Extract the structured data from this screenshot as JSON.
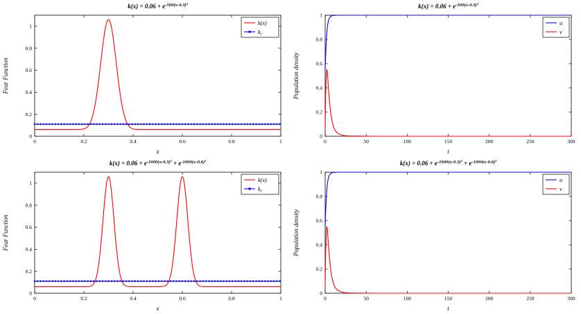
{
  "figure": {
    "background": "#ffffff"
  },
  "colors": {
    "red": "#ff0000",
    "blue": "#0000ff",
    "axis": "#000000"
  },
  "chart_data": [
    {
      "id": "fear-single",
      "type": "line",
      "title_segments": [
        {
          "t": "k(x) = 0.06 + e"
        },
        {
          "sup": "-500(x-0.3)²"
        }
      ],
      "xlabel": "x",
      "ylabel": "Fear  Function",
      "xlim": [
        0,
        1
      ],
      "ylim": [
        0,
        1.1
      ],
      "xticks": [
        0,
        0.2,
        0.4,
        0.6,
        0.8,
        1
      ],
      "xtick_labels": [
        "0",
        "0.2",
        "0.4",
        "0.6",
        "0.8",
        "1"
      ],
      "yticks": [
        0,
        0.2,
        0.4,
        0.6,
        0.8,
        1
      ],
      "ytick_labels": [
        "0",
        "0.2",
        "0.4",
        "0.6",
        "0.8",
        "1"
      ],
      "grid": false,
      "legend": {
        "position": "northeast",
        "width": 54,
        "entries": [
          {
            "label_segments": [
              {
                "t": "k(x)"
              }
            ],
            "color": "#ff0000",
            "marker": false
          },
          {
            "label_segments": [
              {
                "t": "k"
              },
              {
                "sub": "c"
              }
            ],
            "color": "#0000ff",
            "marker": true
          }
        ]
      },
      "series": [
        {
          "name": "k(x)",
          "color": "#ff0000",
          "kind": "gaussian_sum",
          "baseline": 0.06,
          "peaks": [
            {
              "center": 0.3,
              "coef": 500
            }
          ]
        },
        {
          "name": "k_c",
          "color": "#0000ff",
          "kind": "hline",
          "value": 0.11,
          "marker": true,
          "marker_step": 0.012
        }
      ]
    },
    {
      "id": "pop-single",
      "type": "line",
      "title_segments": [
        {
          "t": "k(x) = 0.06 + e"
        },
        {
          "sup": "-500(x-0.3)²"
        }
      ],
      "xlabel": "t",
      "ylabel": "Population  density",
      "xlim": [
        0,
        300
      ],
      "ylim": [
        0,
        1
      ],
      "xticks": [
        0,
        50,
        100,
        150,
        200,
        250,
        300
      ],
      "xtick_labels": [
        "0",
        "50",
        "100",
        "150",
        "200",
        "250",
        "300"
      ],
      "yticks": [
        0,
        0.2,
        0.4,
        0.6,
        0.8,
        1
      ],
      "ytick_labels": [
        "0",
        "0.2",
        "0.4",
        "0.6",
        "0.8",
        "1"
      ],
      "grid": false,
      "legend": {
        "position": "northeast",
        "width": 38,
        "entries": [
          {
            "label_segments": [
              {
                "t": "u"
              }
            ],
            "color": "#0000ff",
            "marker": false
          },
          {
            "label_segments": [
              {
                "t": "v"
              }
            ],
            "color": "#ff0000",
            "marker": false
          }
        ]
      },
      "series": [
        {
          "name": "u",
          "color": "#0000ff",
          "kind": "points",
          "t": [
            0,
            0.5,
            1,
            1.5,
            2,
            2.5,
            3,
            4,
            5,
            6,
            7,
            8,
            10,
            12,
            15,
            20,
            30,
            50,
            100,
            150,
            200,
            250,
            300
          ],
          "y": [
            0.55,
            0.65,
            0.73,
            0.8,
            0.85,
            0.89,
            0.92,
            0.955,
            0.975,
            0.985,
            0.99,
            0.995,
            0.998,
            0.999,
            1,
            1,
            1,
            1,
            1,
            1,
            1,
            1,
            1
          ]
        },
        {
          "name": "v",
          "color": "#ff0000",
          "kind": "points",
          "t": [
            0,
            0.3,
            0.6,
            1,
            1.4,
            1.8,
            2.2,
            2.6,
            3,
            3.5,
            4,
            5,
            6,
            7,
            8,
            10,
            12,
            15,
            20,
            25,
            30,
            40,
            60,
            100,
            150,
            200,
            250,
            300
          ],
          "y": [
            0.05,
            0.2,
            0.33,
            0.45,
            0.52,
            0.55,
            0.55,
            0.53,
            0.5,
            0.45,
            0.4,
            0.31,
            0.24,
            0.18,
            0.14,
            0.08,
            0.05,
            0.025,
            0.01,
            0.004,
            0.002,
            0.001,
            0,
            0,
            0,
            0,
            0,
            0
          ]
        }
      ]
    },
    {
      "id": "fear-double",
      "type": "line",
      "title_segments": [
        {
          "t": "k(x) = 0.06 + e"
        },
        {
          "sup": "-1000(x-0.3)²"
        },
        {
          "t": " + e"
        },
        {
          "sup": "-1000(x-0.6)²"
        }
      ],
      "xlabel": "x",
      "ylabel": "Fear  Function",
      "xlim": [
        0,
        1
      ],
      "ylim": [
        0,
        1.1
      ],
      "xticks": [
        0,
        0.2,
        0.4,
        0.6,
        0.8,
        1
      ],
      "xtick_labels": [
        "0",
        "0.2",
        "0.4",
        "0.6",
        "0.8",
        "1"
      ],
      "yticks": [
        0,
        0.2,
        0.4,
        0.6,
        0.8,
        1
      ],
      "ytick_labels": [
        "0",
        "0.2",
        "0.4",
        "0.6",
        "0.8",
        "1"
      ],
      "grid": false,
      "legend": {
        "position": "northeast",
        "width": 54,
        "entries": [
          {
            "label_segments": [
              {
                "t": "k(x)"
              }
            ],
            "color": "#ff0000",
            "marker": false
          },
          {
            "label_segments": [
              {
                "t": "k"
              },
              {
                "sub": "c"
              }
            ],
            "color": "#0000ff",
            "marker": true
          }
        ]
      },
      "series": [
        {
          "name": "k(x)",
          "color": "#ff0000",
          "kind": "gaussian_sum",
          "baseline": 0.06,
          "peaks": [
            {
              "center": 0.3,
              "coef": 1000
            },
            {
              "center": 0.6,
              "coef": 1000
            }
          ]
        },
        {
          "name": "k_c",
          "color": "#0000ff",
          "kind": "hline",
          "value": 0.11,
          "marker": true,
          "marker_step": 0.012
        }
      ]
    },
    {
      "id": "pop-double",
      "type": "line",
      "title_segments": [
        {
          "t": "k(x) = 0.06 + e"
        },
        {
          "sup": "-1000(x-0.3)²"
        },
        {
          "t": " + e"
        },
        {
          "sup": "-1000(x-0.6)²"
        }
      ],
      "xlabel": "t",
      "ylabel": "Population  density",
      "xlim": [
        0,
        300
      ],
      "ylim": [
        0,
        1
      ],
      "xticks": [
        0,
        50,
        100,
        150,
        200,
        250,
        300
      ],
      "xtick_labels": [
        "0",
        "50",
        "100",
        "150",
        "200",
        "250",
        "300"
      ],
      "yticks": [
        0,
        0.2,
        0.4,
        0.6,
        0.8,
        1
      ],
      "ytick_labels": [
        "0",
        "0.2",
        "0.4",
        "0.6",
        "0.8",
        "1"
      ],
      "grid": false,
      "legend": {
        "position": "northeast",
        "width": 38,
        "entries": [
          {
            "label_segments": [
              {
                "t": "u"
              }
            ],
            "color": "#0000ff",
            "marker": false
          },
          {
            "label_segments": [
              {
                "t": "v"
              }
            ],
            "color": "#ff0000",
            "marker": false
          }
        ]
      },
      "series": [
        {
          "name": "u",
          "color": "#0000ff",
          "kind": "points",
          "t": [
            0,
            0.5,
            1,
            1.5,
            2,
            2.5,
            3,
            4,
            5,
            6,
            7,
            8,
            10,
            12,
            15,
            20,
            30,
            50,
            100,
            150,
            200,
            250,
            300
          ],
          "y": [
            0.55,
            0.65,
            0.73,
            0.8,
            0.85,
            0.89,
            0.92,
            0.955,
            0.975,
            0.985,
            0.99,
            0.995,
            0.998,
            0.999,
            1,
            1,
            1,
            1,
            1,
            1,
            1,
            1,
            1
          ]
        },
        {
          "name": "v",
          "color": "#ff0000",
          "kind": "points",
          "t": [
            0,
            0.3,
            0.6,
            1,
            1.4,
            1.8,
            2.2,
            2.6,
            3,
            3.5,
            4,
            5,
            6,
            7,
            8,
            10,
            12,
            15,
            20,
            25,
            30,
            40,
            60,
            100,
            150,
            200,
            250,
            300
          ],
          "y": [
            0.05,
            0.2,
            0.33,
            0.45,
            0.52,
            0.55,
            0.55,
            0.53,
            0.5,
            0.45,
            0.4,
            0.31,
            0.24,
            0.18,
            0.14,
            0.08,
            0.05,
            0.025,
            0.01,
            0.004,
            0.002,
            0.001,
            0,
            0,
            0,
            0,
            0,
            0
          ]
        }
      ]
    }
  ]
}
